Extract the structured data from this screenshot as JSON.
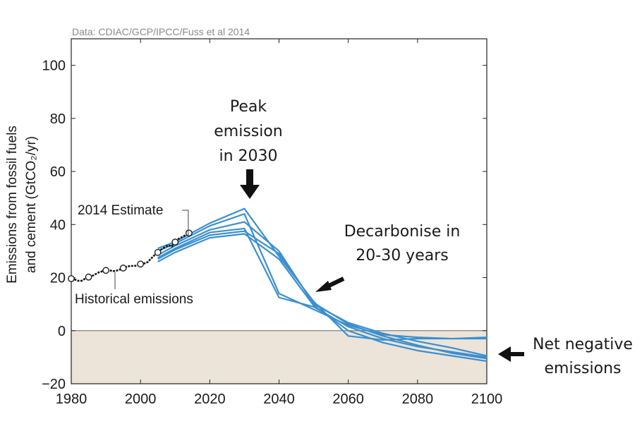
{
  "chart_data": {
    "type": "line",
    "source": "Data: CDIAC/GCP/IPCC/Fuss et al 2014",
    "ylabel_line1": "Emissions from fossil fuels",
    "ylabel_line2": "and cement (GtCO₂/yr)",
    "xlim": [
      1980,
      2100
    ],
    "ylim": [
      -20,
      110
    ],
    "x_ticks": [
      1980,
      2000,
      2020,
      2040,
      2060,
      2080,
      2100
    ],
    "y_ticks": [
      -20,
      0,
      20,
      40,
      60,
      80,
      100
    ],
    "grid": false,
    "colors": {
      "historical": "#111111",
      "scenarios": "#3b8fd0",
      "negative_region": "#ece4d8",
      "arrow": "#111111"
    },
    "historical": {
      "name": "Historical emissions",
      "x": [
        1980,
        1981,
        1982,
        1983,
        1984,
        1985,
        1986,
        1987,
        1988,
        1989,
        1990,
        1991,
        1992,
        1993,
        1994,
        1995,
        1996,
        1997,
        1998,
        1999,
        2000,
        2001,
        2002,
        2003,
        2004,
        2005,
        2006,
        2007,
        2008,
        2009,
        2010,
        2011,
        2012,
        2013,
        2014
      ],
      "y": [
        19.6,
        19.3,
        18.8,
        18.8,
        19.6,
        20.2,
        20.6,
        21.3,
        22.0,
        22.4,
        22.7,
        22.8,
        22.4,
        22.6,
        23.0,
        23.6,
        24.1,
        24.4,
        24.4,
        24.5,
        25.1,
        25.3,
        25.8,
        27.1,
        28.4,
        29.5,
        30.6,
        31.4,
        32.2,
        31.7,
        33.4,
        34.6,
        35.3,
        36.0,
        36.8
      ],
      "markers_x": [
        1980,
        1985,
        1990,
        1995,
        2000,
        2005,
        2010,
        2014
      ],
      "markers_y": [
        19.6,
        20.2,
        22.7,
        23.6,
        25.1,
        29.5,
        33.4,
        36.8
      ]
    },
    "scenarios": [
      {
        "x": [
          2005,
          2010,
          2020,
          2030,
          2040,
          2050,
          2060,
          2070,
          2080,
          2090,
          2100
        ],
        "y": [
          31,
          33.5,
          40.5,
          46,
          28,
          11,
          -2,
          -3.5,
          -3,
          -3,
          -2.5
        ]
      },
      {
        "x": [
          2005,
          2010,
          2020,
          2030,
          2040,
          2050,
          2060,
          2070,
          2080,
          2090,
          2100
        ],
        "y": [
          30,
          32.8,
          39.5,
          44,
          14,
          8,
          2,
          -1.5,
          -2.5,
          -3,
          -3
        ]
      },
      {
        "x": [
          2005,
          2010,
          2020,
          2030,
          2040,
          2050,
          2060,
          2070,
          2080,
          2090,
          2100
        ],
        "y": [
          28.5,
          32,
          38,
          41,
          30,
          10,
          3,
          -1,
          -4,
          -6.5,
          -9.5
        ]
      },
      {
        "x": [
          2005,
          2010,
          2020,
          2030,
          2040,
          2050,
          2060,
          2070,
          2080,
          2090,
          2100
        ],
        "y": [
          27.5,
          31,
          37,
          38.5,
          12.5,
          9,
          1.5,
          -3,
          -6,
          -8,
          -10
        ]
      },
      {
        "x": [
          2005,
          2010,
          2020,
          2030,
          2040,
          2050,
          2060,
          2070,
          2080,
          2090,
          2100
        ],
        "y": [
          27,
          30.5,
          36,
          37.5,
          29,
          10.5,
          2.5,
          -2,
          -5.5,
          -8.5,
          -10.5
        ]
      },
      {
        "x": [
          2005,
          2010,
          2020,
          2030,
          2040,
          2050,
          2060,
          2070,
          2080,
          2090,
          2100
        ],
        "y": [
          26,
          29.5,
          35,
          36.5,
          27,
          9.5,
          0,
          -4.5,
          -7.5,
          -9.5,
          -11.5
        ]
      }
    ],
    "labels": {
      "estimate": "2014 Estimate",
      "historical": "Historical emissions"
    },
    "annotations": {
      "peak": [
        "Peak",
        "emission",
        "in 2030"
      ],
      "decarbonise": [
        "Decarbonise in",
        "20-30 years"
      ],
      "negative": [
        "Net negative",
        "emissions"
      ]
    }
  }
}
